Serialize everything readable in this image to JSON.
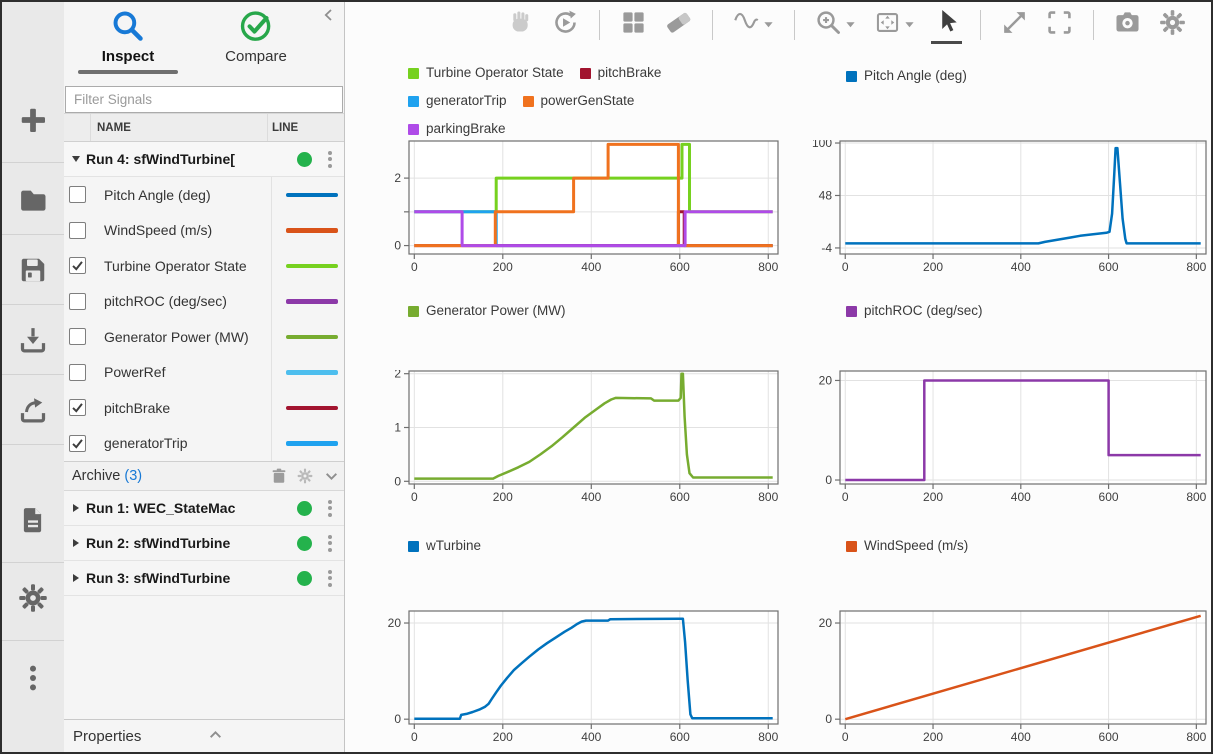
{
  "colors": {
    "accent_blue": "#1779D6",
    "compare_green": "#27A74A",
    "run_dot_green": "#24B24C",
    "sidebar_icon": "#666666",
    "toolbar_icon": "#9A9A9A",
    "toolbar_disabled": "#CBCBCB",
    "pointer_selected": "#3F3F3F"
  },
  "sidebar": {
    "icons": [
      {
        "name": "add-icon"
      },
      {
        "name": "open-folder-icon"
      },
      {
        "name": "save-icon"
      },
      {
        "name": "import-icon"
      },
      {
        "name": "export-icon"
      },
      {
        "name": "report-icon"
      },
      {
        "name": "preferences-gear-icon"
      },
      {
        "name": "more-kebab-icon"
      }
    ]
  },
  "left_panel": {
    "inspect_tab": "Inspect",
    "compare_tab": "Compare",
    "filter_placeholder": "Filter Signals",
    "col_name": "NAME",
    "col_line": "LINE",
    "run": {
      "label": "Run 4: sfWindTurbine["
    },
    "signals": [
      {
        "name": "Pitch Angle (deg)",
        "color": "#0072BD",
        "checked": false
      },
      {
        "name": "WindSpeed (m/s)",
        "color": "#D95319",
        "checked": false
      },
      {
        "name": "Turbine Operator State",
        "color": "#76D11F",
        "checked": true
      },
      {
        "name": "pitchROC (deg/sec)",
        "color": "#8C39A8",
        "checked": false
      },
      {
        "name": "Generator Power (MW)",
        "color": "#77AC30",
        "checked": false
      },
      {
        "name": "PowerRef",
        "color": "#4DBEEE",
        "checked": false
      },
      {
        "name": "pitchBrake",
        "color": "#A2142F",
        "checked": true
      },
      {
        "name": "generatorTrip",
        "color": "#1FA2EF",
        "checked": true
      }
    ],
    "archive": {
      "label": "Archive",
      "count": "(3)",
      "runs": [
        {
          "label": "Run 1: WEC_StateMac"
        },
        {
          "label": "Run 2: sfWindTurbine"
        },
        {
          "label": "Run 3: sfWindTurbine"
        }
      ]
    },
    "properties_label": "Properties"
  },
  "toolbar": {
    "items": [
      {
        "name": "pan-hand-icon",
        "disabled": true
      },
      {
        "name": "replay-icon"
      },
      {
        "name": "separator"
      },
      {
        "name": "layout-grid-icon"
      },
      {
        "name": "eraser-icon"
      },
      {
        "name": "separator"
      },
      {
        "name": "signal-wave-icon",
        "caret": true
      },
      {
        "name": "separator"
      },
      {
        "name": "zoom-in-icon",
        "caret": true
      },
      {
        "name": "fit-to-view-icon",
        "caret": true
      },
      {
        "name": "pointer-icon",
        "selected": true
      },
      {
        "name": "separator"
      },
      {
        "name": "expand-icon"
      },
      {
        "name": "fullscreen-icon"
      },
      {
        "name": "separator"
      },
      {
        "name": "snapshot-camera-icon"
      },
      {
        "name": "settings-gear-icon"
      }
    ]
  },
  "chart_data": [
    {
      "type": "line",
      "xticks": [
        0,
        200,
        400,
        600,
        800
      ],
      "xlim": [
        -12,
        822
      ],
      "ylim": [
        -0.25,
        3.1
      ],
      "grid_y": [
        0,
        1,
        2
      ],
      "ytick_labels": [
        {
          "v": 0,
          "t": "0"
        },
        {
          "v": 2,
          "t": "2"
        }
      ],
      "legend": [
        {
          "label": "Turbine Operator State",
          "color": "#76D11F"
        },
        {
          "label": "pitchBrake",
          "color": "#A2142F"
        },
        {
          "label": "generatorTrip",
          "color": "#1FA2EF"
        },
        {
          "label": "powerGenState",
          "color": "#F0721E"
        },
        {
          "label": "parkingBrake",
          "color": "#AF4BE8"
        }
      ],
      "series": [
        {
          "name": "Turbine Operator State",
          "color": "#76D11F",
          "points": [
            [
              0,
              1
            ],
            [
              185,
              1
            ],
            [
              185,
              2
            ],
            [
              605,
              2
            ],
            [
              605,
              3
            ],
            [
              622,
              3
            ],
            [
              622,
              1
            ],
            [
              810,
              1
            ]
          ]
        },
        {
          "name": "generatorTrip",
          "color": "#1FA2EF",
          "points": [
            [
              0,
              1
            ],
            [
              185,
              1
            ],
            [
              185,
              0
            ],
            [
              810,
              0
            ]
          ]
        },
        {
          "name": "pitchBrake",
          "color": "#A2142F",
          "points": [
            [
              0,
              0
            ],
            [
              597,
              0
            ],
            [
              597,
              1
            ],
            [
              610,
              1
            ],
            [
              610,
              0
            ],
            [
              810,
              0
            ]
          ]
        },
        {
          "name": "powerGenState",
          "color": "#F0721E",
          "points": [
            [
              0,
              0
            ],
            [
              183,
              0
            ],
            [
              183,
              1
            ],
            [
              360,
              1
            ],
            [
              360,
              2
            ],
            [
              438,
              2
            ],
            [
              438,
              3
            ],
            [
              597,
              3
            ],
            [
              597,
              0
            ],
            [
              810,
              0
            ]
          ]
        },
        {
          "name": "parkingBrake",
          "color": "#AF4BE8",
          "points": [
            [
              0,
              1
            ],
            [
              108,
              1
            ],
            [
              108,
              0
            ],
            [
              612,
              0
            ],
            [
              612,
              1
            ],
            [
              810,
              1
            ]
          ]
        }
      ]
    },
    {
      "type": "line",
      "xticks": [
        0,
        200,
        400,
        600,
        800
      ],
      "xlim": [
        -12,
        822
      ],
      "ylim": [
        -10,
        102
      ],
      "grid_y": [
        -4,
        48,
        100
      ],
      "ytick_labels": [
        {
          "v": -4,
          "t": "-4"
        },
        {
          "v": 48,
          "t": "48"
        },
        {
          "v": 100,
          "t": "100"
        }
      ],
      "legend": [
        {
          "label": "Pitch Angle (deg)",
          "color": "#0072BD"
        }
      ],
      "series": [
        {
          "name": "Pitch Angle (deg)",
          "color": "#0072BD",
          "points": [
            [
              0,
              0.5
            ],
            [
              440,
              0.5
            ],
            [
              455,
              2
            ],
            [
              475,
              3.5
            ],
            [
              495,
              5
            ],
            [
              515,
              6.5
            ],
            [
              535,
              8
            ],
            [
              555,
              9
            ],
            [
              575,
              10
            ],
            [
              595,
              11
            ],
            [
              602,
              12
            ],
            [
              608,
              30
            ],
            [
              613,
              70
            ],
            [
              616,
              95
            ],
            [
              620,
              95
            ],
            [
              626,
              60
            ],
            [
              632,
              25
            ],
            [
              638,
              5
            ],
            [
              641,
              0.5
            ],
            [
              810,
              0.5
            ]
          ]
        }
      ]
    },
    {
      "type": "line",
      "xticks": [
        0,
        200,
        400,
        600,
        800
      ],
      "xlim": [
        -12,
        822
      ],
      "ylim": [
        -0.05,
        2.05
      ],
      "grid_y": [
        0,
        1,
        2
      ],
      "ytick_labels": [
        {
          "v": 0,
          "t": "0"
        },
        {
          "v": 1,
          "t": "1"
        },
        {
          "v": 2,
          "t": "2"
        }
      ],
      "legend": [
        {
          "label": "Generator Power (MW)",
          "color": "#77AC30"
        }
      ],
      "series": [
        {
          "name": "Generator Power (MW)",
          "color": "#77AC30",
          "points": [
            [
              0,
              0.05
            ],
            [
              178,
              0.05
            ],
            [
              190,
              0.1
            ],
            [
              210,
              0.17
            ],
            [
              235,
              0.26
            ],
            [
              260,
              0.36
            ],
            [
              285,
              0.5
            ],
            [
              310,
              0.65
            ],
            [
              335,
              0.82
            ],
            [
              360,
              1.0
            ],
            [
              385,
              1.18
            ],
            [
              410,
              1.33
            ],
            [
              430,
              1.45
            ],
            [
              445,
              1.52
            ],
            [
              455,
              1.55
            ],
            [
              535,
              1.54
            ],
            [
              542,
              1.5
            ],
            [
              597,
              1.5
            ],
            [
              602,
              1.55
            ],
            [
              604,
              2.0
            ],
            [
              607,
              2.0
            ],
            [
              611,
              1.2
            ],
            [
              616,
              0.5
            ],
            [
              622,
              0.15
            ],
            [
              630,
              0.07
            ],
            [
              810,
              0.07
            ]
          ]
        }
      ]
    },
    {
      "type": "line",
      "xticks": [
        0,
        200,
        400,
        600,
        800
      ],
      "xlim": [
        -12,
        822
      ],
      "ylim": [
        -0.8,
        21.9
      ],
      "grid_y": [
        0,
        20
      ],
      "ytick_labels": [
        {
          "v": 0,
          "t": "0"
        },
        {
          "v": 20,
          "t": "20"
        }
      ],
      "legend": [
        {
          "label": "pitchROC (deg/sec)",
          "color": "#8C39A8"
        }
      ],
      "series": [
        {
          "name": "pitchROC (deg/sec)",
          "color": "#8C39A8",
          "points": [
            [
              0,
              0
            ],
            [
              180,
              0
            ],
            [
              180,
              20
            ],
            [
              600,
              20
            ],
            [
              600,
              5
            ],
            [
              810,
              5
            ]
          ]
        }
      ]
    },
    {
      "type": "line",
      "xticks": [
        0,
        200,
        400,
        600,
        800
      ],
      "xlim": [
        -12,
        822
      ],
      "ylim": [
        -1.0,
        22.5
      ],
      "grid_y": [
        0,
        20
      ],
      "ytick_labels": [
        {
          "v": 0,
          "t": "0"
        },
        {
          "v": 20,
          "t": "20"
        }
      ],
      "legend": [
        {
          "label": "wTurbine",
          "color": "#0072BD"
        }
      ],
      "series": [
        {
          "name": "wTurbine",
          "color": "#0072BD",
          "points": [
            [
              0,
              0.1
            ],
            [
              103,
              0.1
            ],
            [
              106,
              0.9
            ],
            [
              118,
              1.1
            ],
            [
              132,
              1.5
            ],
            [
              147,
              2.0
            ],
            [
              160,
              2.6
            ],
            [
              168,
              3.2
            ],
            [
              175,
              4.2
            ],
            [
              185,
              5.6
            ],
            [
              196,
              7.0
            ],
            [
              210,
              8.6
            ],
            [
              225,
              10.2
            ],
            [
              242,
              11.6
            ],
            [
              260,
              13.0
            ],
            [
              280,
              14.5
            ],
            [
              300,
              15.8
            ],
            [
              320,
              17.0
            ],
            [
              340,
              18.2
            ],
            [
              355,
              19.0
            ],
            [
              368,
              19.8
            ],
            [
              378,
              20.3
            ],
            [
              388,
              20.5
            ],
            [
              438,
              20.5
            ],
            [
              443,
              20.8
            ],
            [
              600,
              20.9
            ],
            [
              607,
              20.9
            ],
            [
              612,
              16
            ],
            [
              618,
              8
            ],
            [
              624,
              1
            ],
            [
              628,
              0.2
            ],
            [
              810,
              0.2
            ]
          ]
        }
      ]
    },
    {
      "type": "line",
      "xticks": [
        0,
        200,
        400,
        600,
        800
      ],
      "xlim": [
        -12,
        822
      ],
      "ylim": [
        -1.0,
        22.5
      ],
      "grid_y": [
        0,
        20
      ],
      "ytick_labels": [
        {
          "v": 0,
          "t": "0"
        },
        {
          "v": 20,
          "t": "20"
        }
      ],
      "legend": [
        {
          "label": "WindSpeed (m/s)",
          "color": "#D95319"
        }
      ],
      "series": [
        {
          "name": "WindSpeed (m/s)",
          "color": "#D95319",
          "points": [
            [
              0,
              0
            ],
            [
              810,
              21.5
            ]
          ]
        }
      ]
    }
  ]
}
